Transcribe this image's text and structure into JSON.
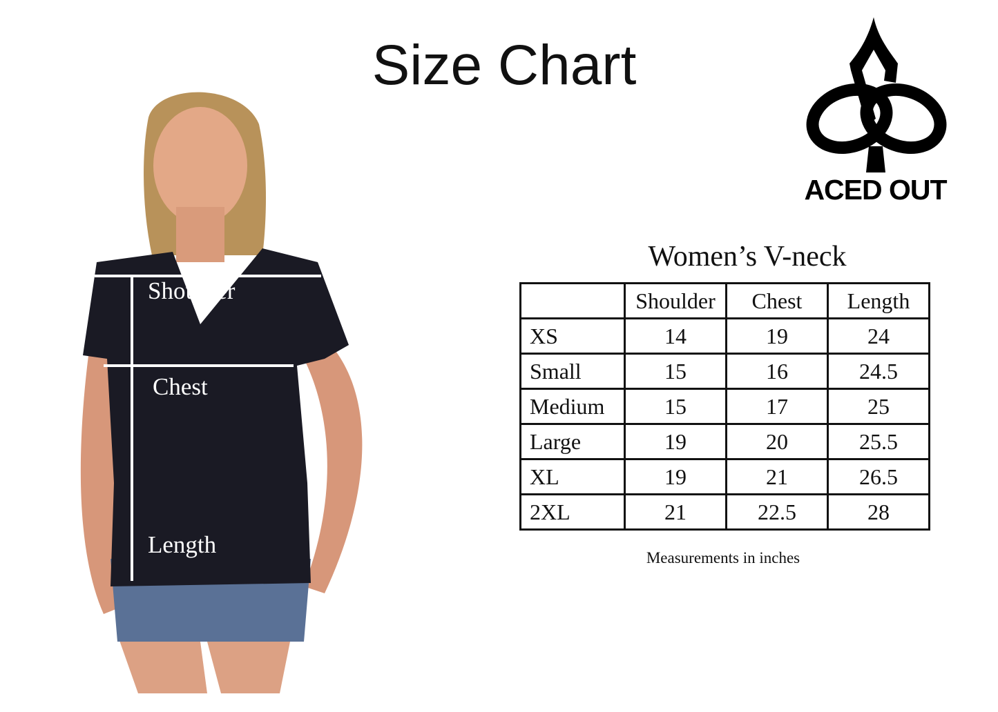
{
  "header": {
    "title": "Size Chart"
  },
  "brand": {
    "name": "ACED OUT",
    "icon": "spade-knot-logo"
  },
  "model_photo": {
    "labels": {
      "shoulder": "Shoulder",
      "chest": "Chest",
      "length": "Length"
    },
    "line_color": "#ffffff",
    "shirt_color": "#1a1a24"
  },
  "size_table": {
    "title": "Women’s V-neck",
    "columns": [
      "",
      "Shoulder",
      "Chest",
      "Length"
    ],
    "rows": [
      {
        "size": "XS",
        "shoulder": "14",
        "chest": "19",
        "length": "24"
      },
      {
        "size": "Small",
        "shoulder": "15",
        "chest": "16",
        "length": "24.5"
      },
      {
        "size": "Medium",
        "shoulder": "15",
        "chest": "17",
        "length": "25"
      },
      {
        "size": "Large",
        "shoulder": "19",
        "chest": "20",
        "length": "25.5"
      },
      {
        "size": "XL",
        "shoulder": "19",
        "chest": "21",
        "length": "26.5"
      },
      {
        "size": "2XL",
        "shoulder": "21",
        "chest": "22.5",
        "length": "28"
      }
    ],
    "note": "Measurements in inches"
  }
}
